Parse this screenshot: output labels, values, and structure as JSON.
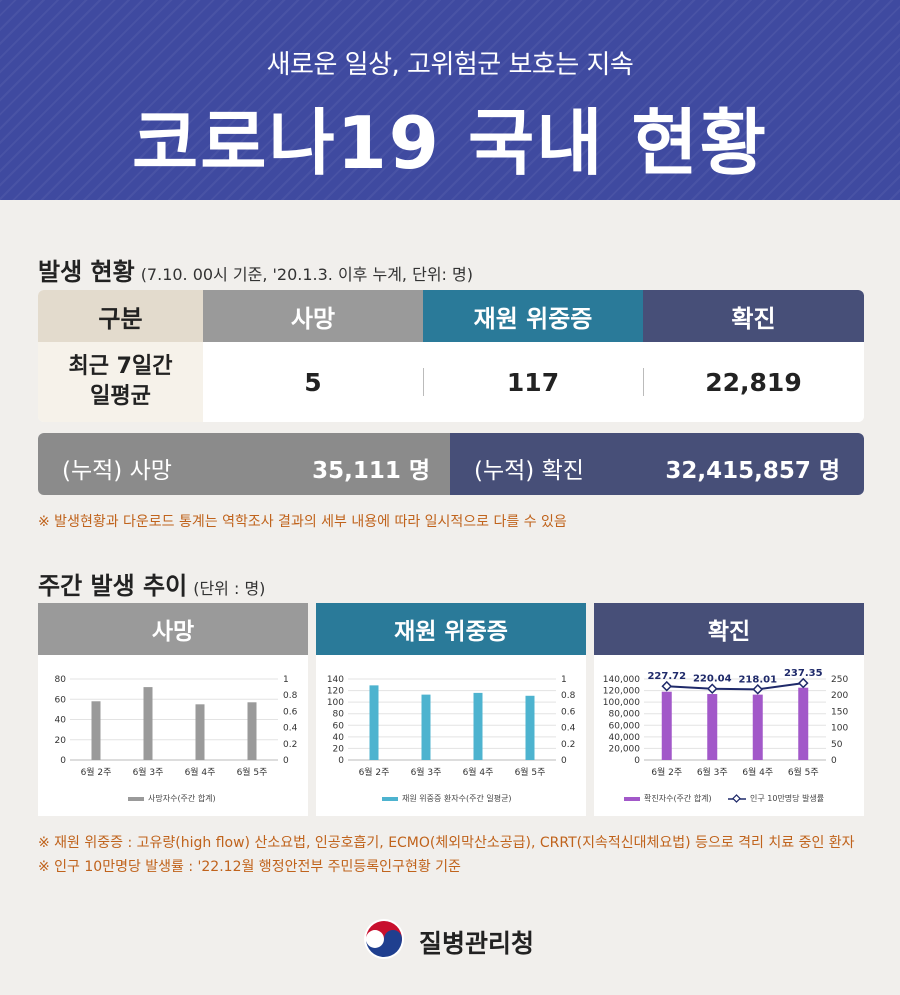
{
  "header": {
    "subtitle": "새로운 일상, 고위험군 보호는 지속",
    "title": "코로나19 국내 현황"
  },
  "occurrence": {
    "title": "발생 현황",
    "note": "(7.10. 00시 기준, '20.1.3. 이후 누계, 단위: 명)",
    "headers": [
      "구분",
      "사망",
      "재원 위중증",
      "확진"
    ],
    "row_label": "최근 7일간 일평균",
    "row_label_line1": "최근 7일간",
    "row_label_line2": "일평균",
    "values": [
      "5",
      "117",
      "22,819"
    ],
    "cumulative": {
      "death_label": "(누적) 사망",
      "death_value": "35,111 명",
      "confirm_label": "(누적) 확진",
      "confirm_value": "32,415,857 명"
    },
    "warning": "※ 발생현황과 다운로드 통계는 역학조사 결과의 세부 내용에 따라 일시적으로 다를 수 있음"
  },
  "weekly": {
    "title": "주간 발생 추이",
    "note": "(단위 : 명)",
    "cards": [
      "사망",
      "재원 위중증",
      "확진"
    ]
  },
  "chart_data": [
    {
      "type": "bar",
      "categories": [
        "6월 2주",
        "6월 3주",
        "6월 4주",
        "6월 5주"
      ],
      "series": [
        {
          "name": "사망자수(주간 합계)",
          "values": [
            58,
            72,
            55,
            57
          ]
        }
      ],
      "ylim": [
        0,
        80
      ],
      "yticks": [
        0,
        20,
        40,
        60,
        80
      ],
      "y2ticks": [
        "0",
        "0.2",
        "0.4",
        "0.6",
        "0.8",
        "1"
      ],
      "color": "#9a9a9a"
    },
    {
      "type": "bar",
      "categories": [
        "6월 2주",
        "6월 3주",
        "6월 4주",
        "6월 5주"
      ],
      "series": [
        {
          "name": "재원 위중증 환자수(주간 일평균)",
          "values": [
            129,
            113,
            116,
            111
          ]
        }
      ],
      "ylim": [
        0,
        140
      ],
      "yticks": [
        0,
        20,
        40,
        60,
        80,
        100,
        120,
        140
      ],
      "y2ticks": [
        "0",
        "0.2",
        "0.4",
        "0.6",
        "0.8",
        "1"
      ],
      "color": "#4db3cf"
    },
    {
      "type": "bar",
      "categories": [
        "6월 2주",
        "6월 3주",
        "6월 4주",
        "6월 5주"
      ],
      "series": [
        {
          "name": "확진자수(주간 합계)",
          "values": [
            118000,
            114000,
            113000,
            125000
          ]
        },
        {
          "name": "인구 10만명당 발생률",
          "values": [
            227.72,
            220.04,
            218.01,
            237.35
          ],
          "labels": [
            "227.72",
            "220.04",
            "218.01",
            "237.35"
          ]
        }
      ],
      "ylim": [
        0,
        140000
      ],
      "y2lim": [
        0,
        250
      ],
      "yticks": [
        "0",
        "20,000",
        "40,000",
        "60,000",
        "80,000",
        "100,000",
        "120,000",
        "140,000"
      ],
      "y2ticks": [
        "0",
        "50",
        "100",
        "150",
        "200",
        "250"
      ],
      "color": "#a258c9",
      "line_color": "#1f2a6a"
    }
  ],
  "footnotes": [
    "※ 재원 위중증 : 고유량(high flow) 산소요법, 인공호흡기, ECMO(체외막산소공급), CRRT(지속적신대체요법) 등으로 격리 치료 중인 환자",
    "※ 인구 10만명당 발생률 : '22.12월 행정안전부 주민등록인구현황 기준"
  ],
  "logo": {
    "name": "질병관리청"
  },
  "colors": {
    "header": "#3f4aa0",
    "death": "#9a9a9a",
    "severe": "#2a7a99",
    "confirm": "#474f78",
    "warning": "#c0631c"
  }
}
